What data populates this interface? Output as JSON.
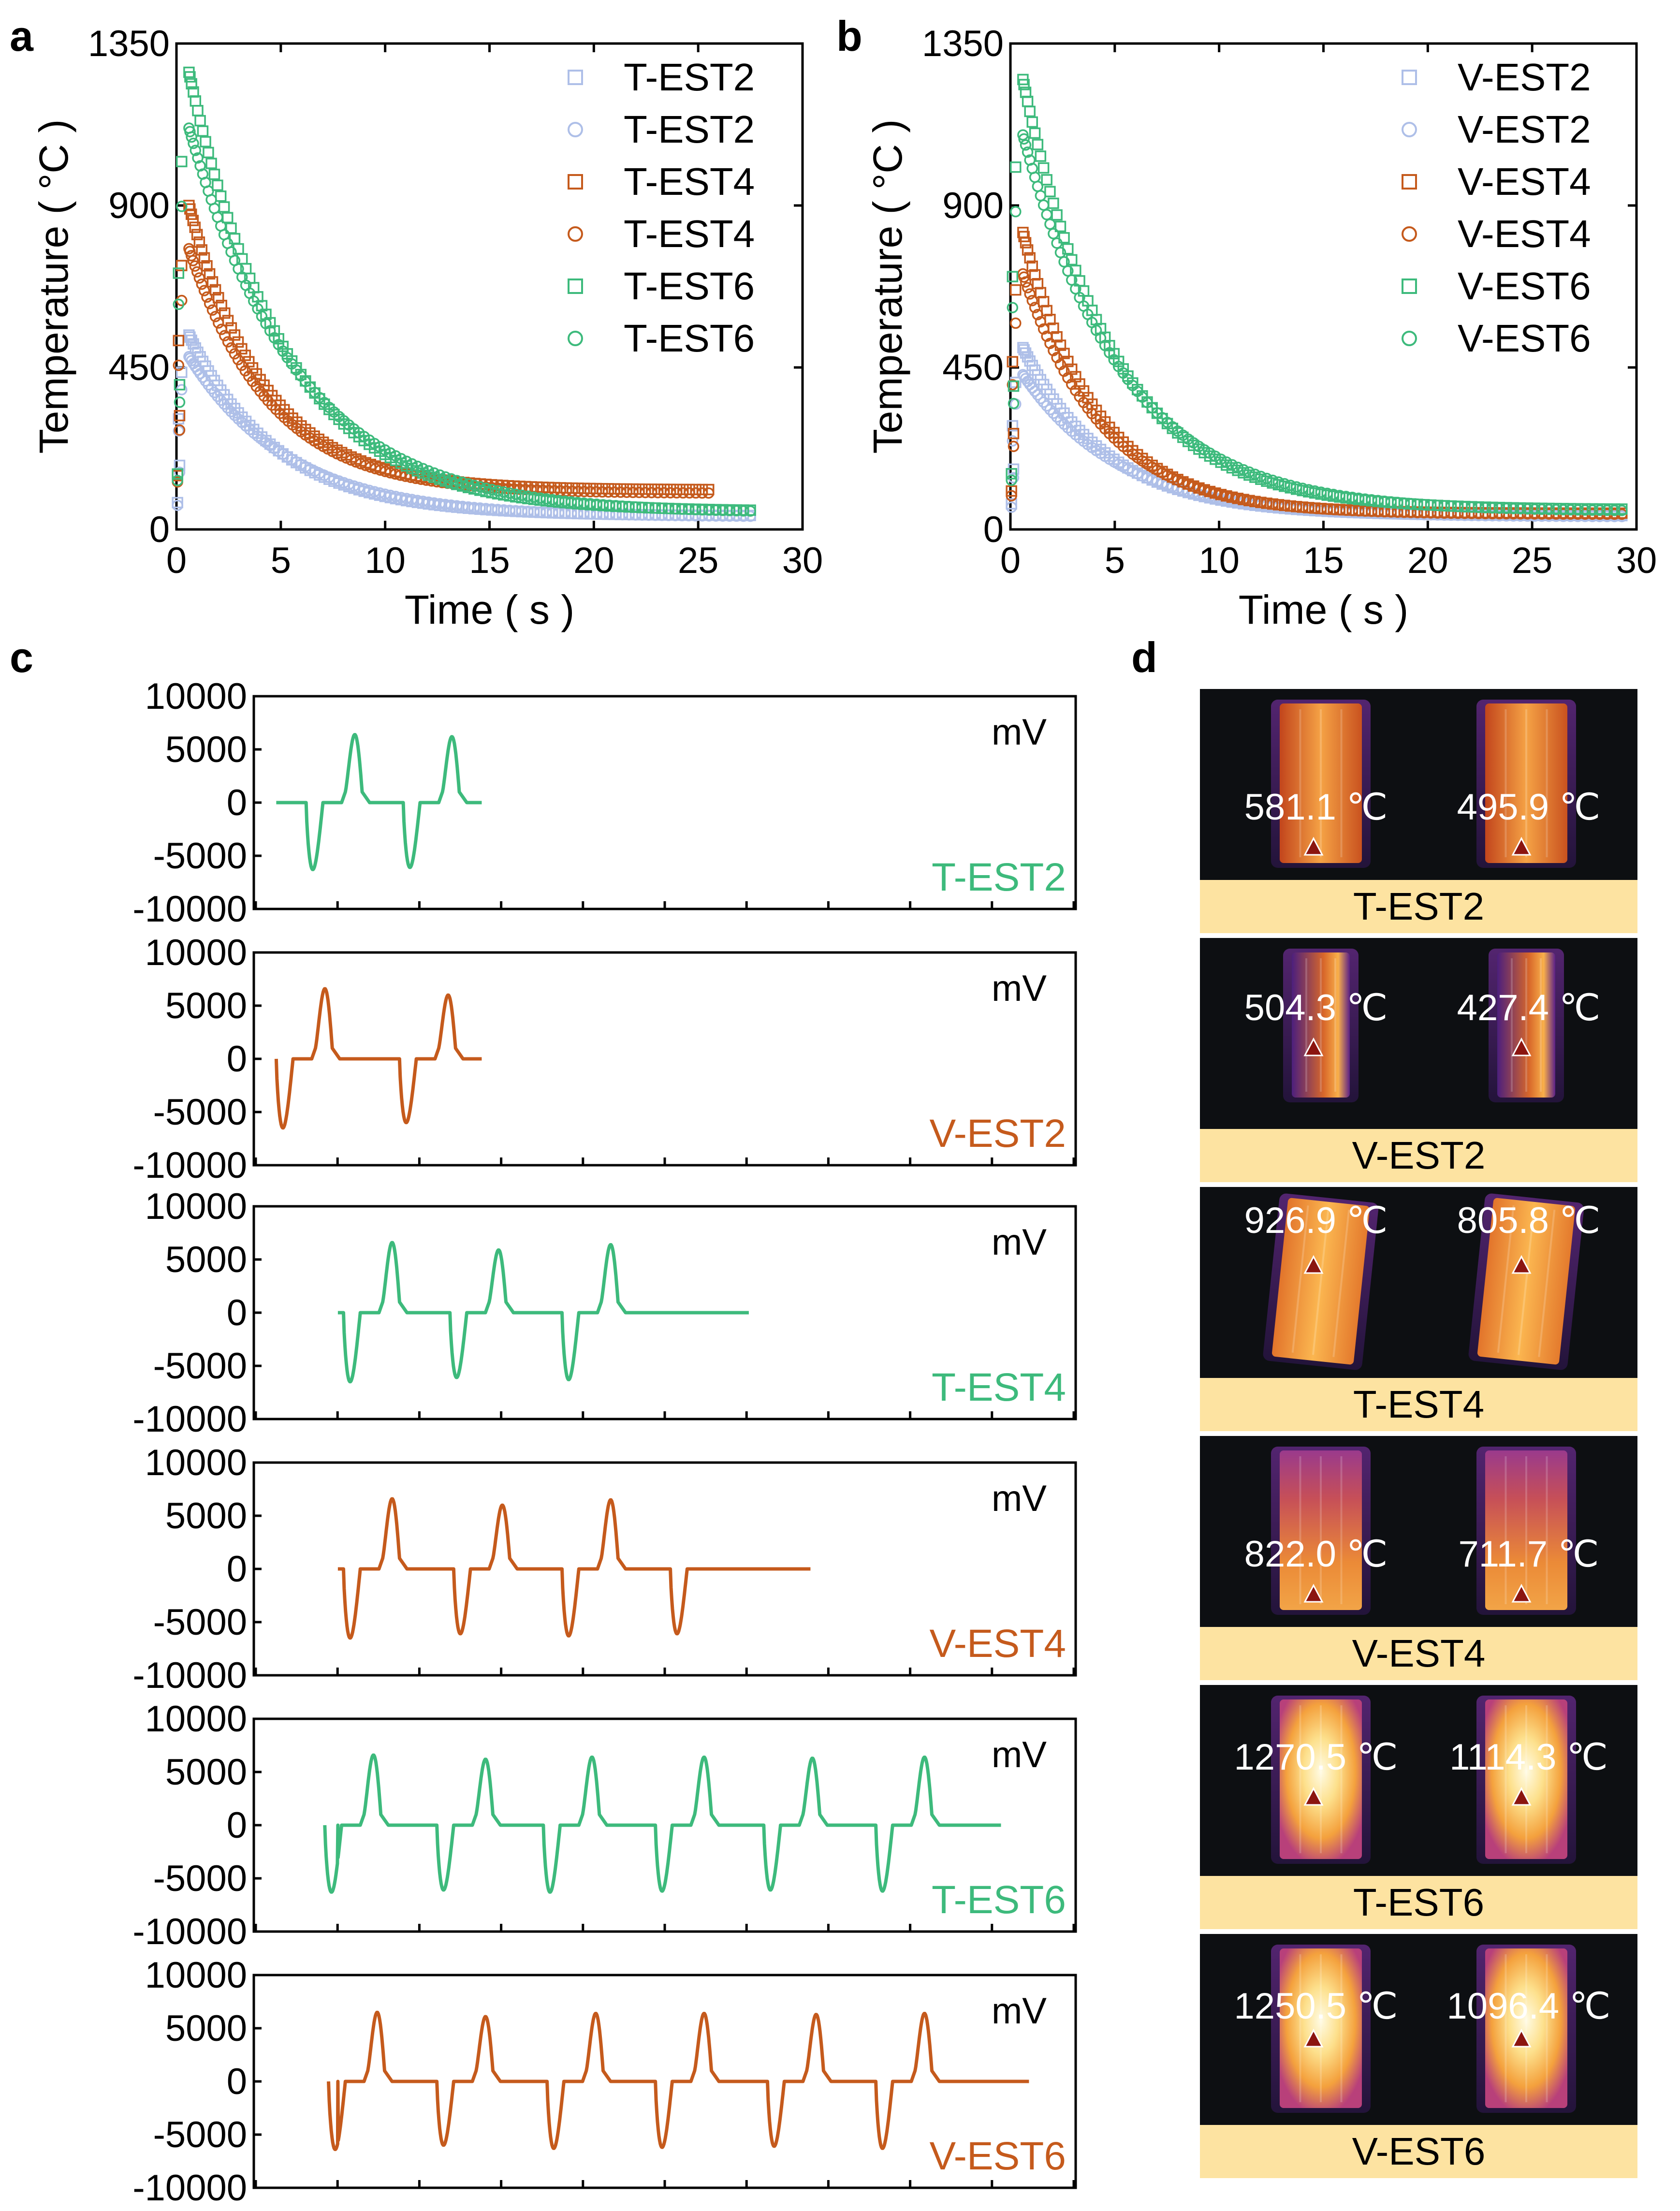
{
  "figure": {
    "panels": {
      "a": {
        "letter": "a"
      },
      "b": {
        "letter": "b"
      },
      "c": {
        "letter": "c"
      },
      "d": {
        "letter": "d"
      }
    }
  },
  "colors": {
    "green": "#3dba7c",
    "orange": "#c55a1c",
    "blue": "#aebfe8",
    "thermal_bg": "#0d0f12",
    "label_band": "#fde3a1",
    "marker": "#8b1510"
  },
  "chart_data": [
    {
      "id": "a",
      "type": "scatter",
      "xlabel": "Time ( s )",
      "ylabel": "Temperature ( °C )",
      "xlim": [
        0,
        30
      ],
      "ylim": [
        0,
        1350
      ],
      "xticks": [
        "0",
        "5",
        "10",
        "15",
        "20",
        "25",
        "30"
      ],
      "yticks": [
        "0",
        "450",
        "900",
        "1350"
      ],
      "legend_position": "top-right",
      "series": [
        {
          "name": "T-EST2",
          "marker": "square",
          "color": "#aebfe8",
          "peak": 540,
          "end": 38,
          "t_end": 27.5,
          "tau": 4.2
        },
        {
          "name": "T-EST2",
          "marker": "circle",
          "color": "#aebfe8",
          "peak": 480,
          "end": 35,
          "t_end": 27.5,
          "tau": 4.8
        },
        {
          "name": "T-EST4",
          "marker": "square",
          "color": "#c55a1c",
          "peak": 900,
          "end": 110,
          "t_end": 25.5,
          "tau": 3.6
        },
        {
          "name": "T-EST4",
          "marker": "circle",
          "color": "#c55a1c",
          "peak": 780,
          "end": 100,
          "t_end": 25.5,
          "tau": 3.9
        },
        {
          "name": "T-EST6",
          "marker": "square",
          "color": "#3dba7c",
          "peak": 1270,
          "end": 50,
          "t_end": 27.5,
          "tau": 4.6
        },
        {
          "name": "T-EST6",
          "marker": "circle",
          "color": "#3dba7c",
          "peak": 1115,
          "end": 45,
          "t_end": 27.5,
          "tau": 5.2
        }
      ]
    },
    {
      "id": "b",
      "type": "scatter",
      "xlabel": "Time ( s )",
      "ylabel": "Temperature ( °C )",
      "xlim": [
        0,
        30
      ],
      "ylim": [
        0,
        1350
      ],
      "xticks": [
        "0",
        "5",
        "10",
        "15",
        "20",
        "25",
        "30"
      ],
      "yticks": [
        "0",
        "450",
        "900",
        "1350"
      ],
      "legend_position": "top-right",
      "series": [
        {
          "name": "V-EST2",
          "marker": "square",
          "color": "#aebfe8",
          "peak": 505,
          "end": 38,
          "t_end": 29.3,
          "tau": 4.0
        },
        {
          "name": "V-EST2",
          "marker": "circle",
          "color": "#aebfe8",
          "peak": 430,
          "end": 35,
          "t_end": 29.3,
          "tau": 4.6
        },
        {
          "name": "V-EST4",
          "marker": "square",
          "color": "#c55a1c",
          "peak": 825,
          "end": 45,
          "t_end": 29.3,
          "tau": 3.5
        },
        {
          "name": "V-EST4",
          "marker": "circle",
          "color": "#c55a1c",
          "peak": 710,
          "end": 42,
          "t_end": 29.3,
          "tau": 3.8
        },
        {
          "name": "V-EST6",
          "marker": "square",
          "color": "#3dba7c",
          "peak": 1250,
          "end": 55,
          "t_end": 29.3,
          "tau": 4.3
        },
        {
          "name": "V-EST6",
          "marker": "circle",
          "color": "#3dba7c",
          "peak": 1096,
          "end": 50,
          "t_end": 29.3,
          "tau": 4.8
        }
      ]
    },
    {
      "id": "c",
      "type": "line",
      "unit": "mV",
      "ylim": [
        -10000,
        10000
      ],
      "yticks": [
        "10000",
        "5000",
        "0",
        "-5000",
        "-10000"
      ],
      "x_ticks_count": 11,
      "subplots": [
        {
          "name": "T-EST2",
          "color": "#3dba7c",
          "start": 0.12,
          "pulse_width": 0.09,
          "pulses": [
            [
              0.28,
              -6300,
              6400
            ],
            [
              0.8,
              -6100,
              6200
            ]
          ],
          "end": 1.22
        },
        {
          "name": "V-EST2",
          "color": "#c55a1c",
          "start": 0.12,
          "pulse_width": 0.09,
          "pulses": [
            [
              0.12,
              -6500,
              6600
            ],
            [
              0.78,
              -6000,
              6000
            ]
          ],
          "end": 1.22
        },
        {
          "name": "T-EST4",
          "color": "#3dba7c",
          "start": 0.45,
          "pulse_width": 0.09,
          "pulses": [
            [
              0.48,
              -6500,
              6600
            ],
            [
              1.05,
              -6100,
              5900
            ],
            [
              1.65,
              -6300,
              6400
            ]
          ],
          "end": 2.65
        },
        {
          "name": "V-EST4",
          "color": "#c55a1c",
          "start": 0.45,
          "pulse_width": 0.09,
          "pulses": [
            [
              0.48,
              -6500,
              6600
            ],
            [
              1.07,
              -6100,
              6000
            ],
            [
              1.65,
              -6300,
              6500
            ],
            [
              2.23,
              -6100,
              null
            ]
          ],
          "end": 2.98
        },
        {
          "name": "T-EST6",
          "color": "#3dba7c",
          "start": 0.45,
          "pulse_width": 0.09,
          "pulses": [
            [
              0.38,
              -6300,
              6600
            ],
            [
              0.98,
              -6100,
              6200
            ],
            [
              1.55,
              -6300,
              6400
            ],
            [
              2.15,
              -6200,
              6400
            ],
            [
              2.73,
              -6100,
              6300
            ],
            [
              3.33,
              -6200,
              6400
            ]
          ],
          "end": 4.0
        },
        {
          "name": "V-EST6",
          "color": "#c55a1c",
          "start": 0.45,
          "pulse_width": 0.09,
          "pulses": [
            [
              0.4,
              -6400,
              6500
            ],
            [
              0.98,
              -6000,
              6100
            ],
            [
              1.57,
              -6300,
              6400
            ],
            [
              2.15,
              -6200,
              6400
            ],
            [
              2.75,
              -6100,
              6300
            ],
            [
              3.33,
              -6300,
              6400
            ]
          ],
          "end": 4.15
        }
      ]
    }
  ],
  "thermal_panels": [
    {
      "label": "T-EST2",
      "left_temp": "581.1 ℃",
      "right_temp": "495.9 ℃",
      "style": "tall",
      "left_value": 581.1,
      "right_value": 495.9
    },
    {
      "label": "V-EST2",
      "left_temp": "504.3 ℃",
      "right_temp": "427.4 ℃",
      "style": "narrow",
      "left_value": 504.3,
      "right_value": 427.4
    },
    {
      "label": "T-EST4",
      "left_temp": "926.9 ℃",
      "right_temp": "805.8 ℃",
      "style": "tilted",
      "left_value": 926.9,
      "right_value": 805.8
    },
    {
      "label": "V-EST4",
      "left_temp": "822.0 ℃",
      "right_temp": "711.7 ℃",
      "style": "tall",
      "left_value": 822.0,
      "right_value": 711.7
    },
    {
      "label": "T-EST6",
      "left_temp": "1270.5 ℃",
      "right_temp": "1114.3 ℃",
      "style": "hot",
      "left_value": 1270.5,
      "right_value": 1114.3
    },
    {
      "label": "V-EST6",
      "left_temp": "1250.5 ℃",
      "right_temp": "1096.4 ℃",
      "style": "hot",
      "left_value": 1250.5,
      "right_value": 1096.4
    }
  ]
}
